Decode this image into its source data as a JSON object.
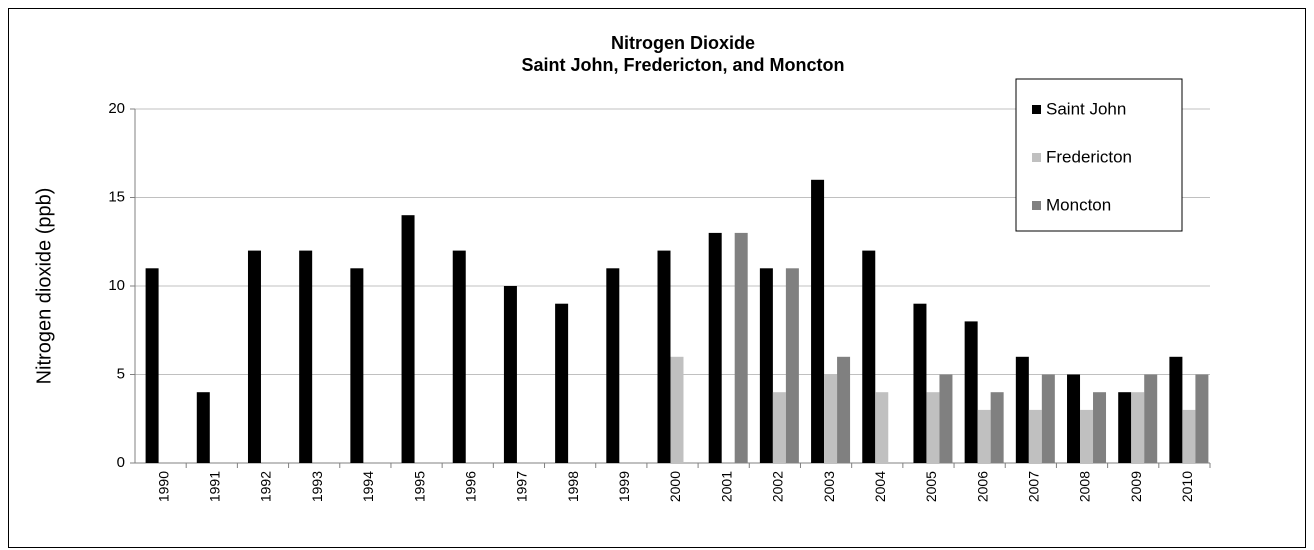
{
  "chart_data": {
    "type": "bar",
    "title": [
      "Nitrogen Dioxide",
      "Saint John, Fredericton, and Moncton"
    ],
    "y_label": "Nitrogen dioxide (ppb)",
    "categories": [
      "1990",
      "1991",
      "1992",
      "1993",
      "1994",
      "1995",
      "1996",
      "1997",
      "1998",
      "1999",
      "2000",
      "2001",
      "2002",
      "2003",
      "2004",
      "2005",
      "2006",
      "2007",
      "2008",
      "2009",
      "2010"
    ],
    "series": [
      {
        "name": "Saint John",
        "color": "#000000",
        "values": [
          11,
          4,
          12,
          12,
          11,
          14,
          12,
          10,
          9,
          11,
          12,
          13,
          11,
          16,
          12,
          9,
          8,
          6,
          5,
          4,
          6
        ]
      },
      {
        "name": "Fredericton",
        "color": "#c0c0c0",
        "values": [
          null,
          null,
          null,
          null,
          null,
          null,
          null,
          null,
          null,
          null,
          6,
          null,
          4,
          5,
          4,
          4,
          3,
          3,
          3,
          4,
          3
        ]
      },
      {
        "name": "Moncton",
        "color": "#808080",
        "values": [
          null,
          null,
          null,
          null,
          null,
          null,
          null,
          null,
          null,
          null,
          null,
          13,
          11,
          6,
          null,
          5,
          4,
          5,
          4,
          5,
          5
        ]
      }
    ],
    "ylim": [
      0,
      20
    ],
    "yticks": [
      0,
      5,
      10,
      15,
      20
    ],
    "grid": true,
    "legend": "top-right"
  }
}
